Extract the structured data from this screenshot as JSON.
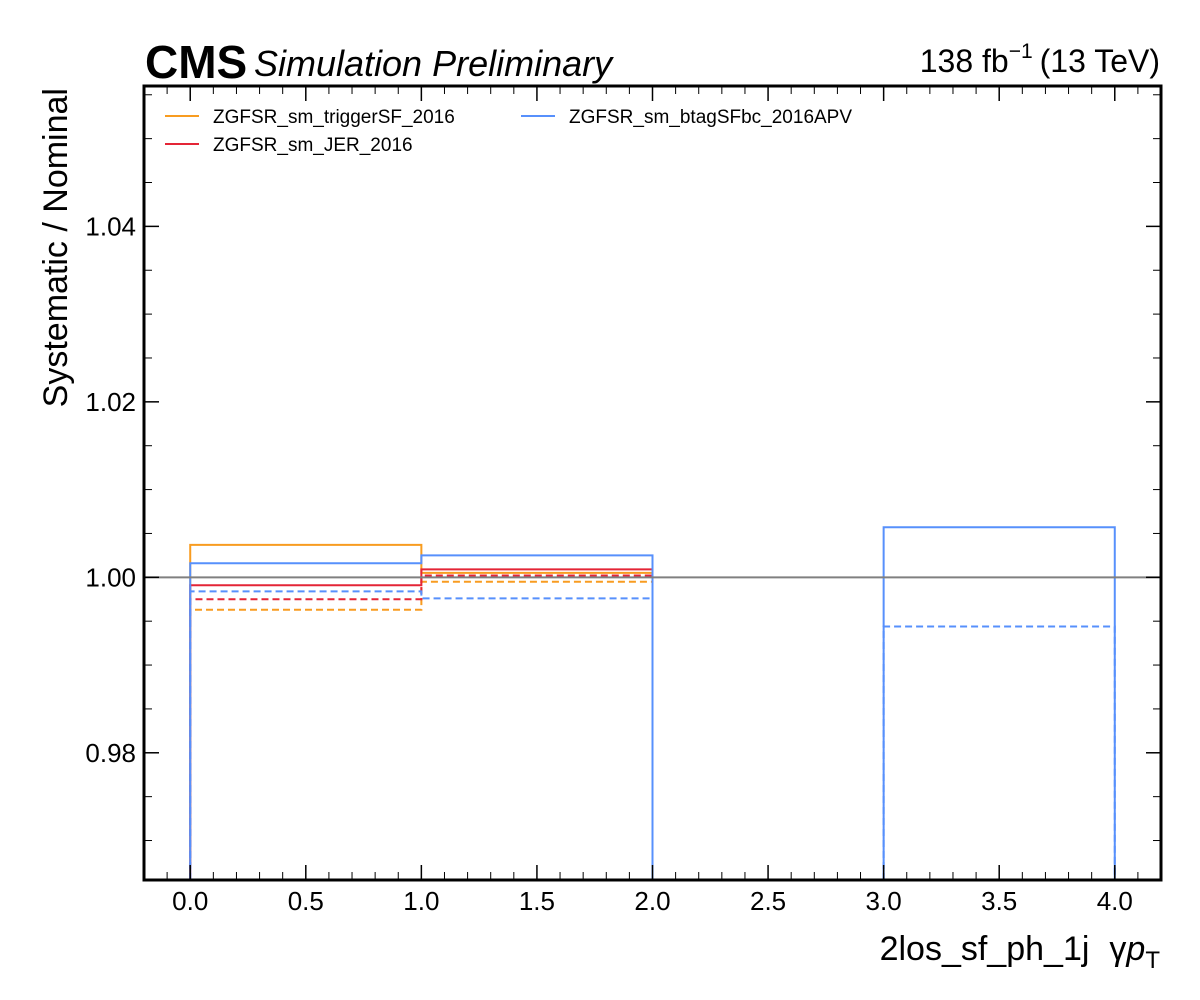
{
  "header": {
    "experiment": "CMS",
    "status": "Simulation Preliminary",
    "lumi_value": "138 fb",
    "lumi_exponent": "−1",
    "energy": "(13 TeV)"
  },
  "chart_data": {
    "type": "step",
    "xlabel_main": "2los_sf_ph_1j",
    "xlabel_symbol": "γ",
    "xlabel_var": "p",
    "xlabel_sub": "T",
    "ylabel": "Systematic / Nominal",
    "xlim": [
      -0.2,
      4.2
    ],
    "ylim": [
      0.9655,
      1.056
    ],
    "x_ticks": [
      0.0,
      0.5,
      1.0,
      1.5,
      2.0,
      2.5,
      3.0,
      3.5,
      4.0
    ],
    "x_tick_labels": [
      "0.0",
      "0.5",
      "1.0",
      "1.5",
      "2.0",
      "2.5",
      "3.0",
      "3.5",
      "4.0"
    ],
    "y_ticks": [
      0.98,
      1.0,
      1.02,
      1.04
    ],
    "y_tick_labels": [
      "0.98",
      "1.00",
      "1.02",
      "1.04"
    ],
    "bin_edges": [
      0,
      1,
      2,
      3,
      4
    ],
    "reference_line": 1.0,
    "legend_position": "top-left",
    "series": [
      {
        "name": "ZGFSR_sm_triggerSF_2016",
        "color": "#f89c20",
        "up": [
          1.0037,
          1.0005,
          1.0,
          1.0
        ],
        "down": [
          0.9963,
          0.9995,
          1.0,
          1.0
        ]
      },
      {
        "name": "ZGFSR_sm_JER_2016",
        "color": "#e42536",
        "up": [
          0.9991,
          1.0009,
          1.0,
          1.0
        ],
        "down": [
          0.9975,
          1.0002,
          1.0,
          1.0
        ]
      },
      {
        "name": "ZGFSR_sm_btagSFbc_2016APV",
        "color": "#5790fc",
        "up": [
          1.0016,
          1.0025,
          1.0,
          1.0057
        ],
        "down": [
          0.9984,
          0.9976,
          1.0,
          0.9944
        ]
      }
    ]
  }
}
